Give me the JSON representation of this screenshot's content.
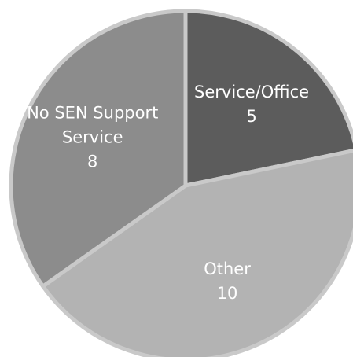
{
  "chart_data": {
    "type": "pie",
    "categories": [
      "Service/Office",
      "Other",
      "No SEN Support Service"
    ],
    "values": [
      5,
      10,
      8
    ],
    "colors": [
      "#5c5c5c",
      "#b3b3b3",
      "#8c8c8c"
    ]
  }
}
